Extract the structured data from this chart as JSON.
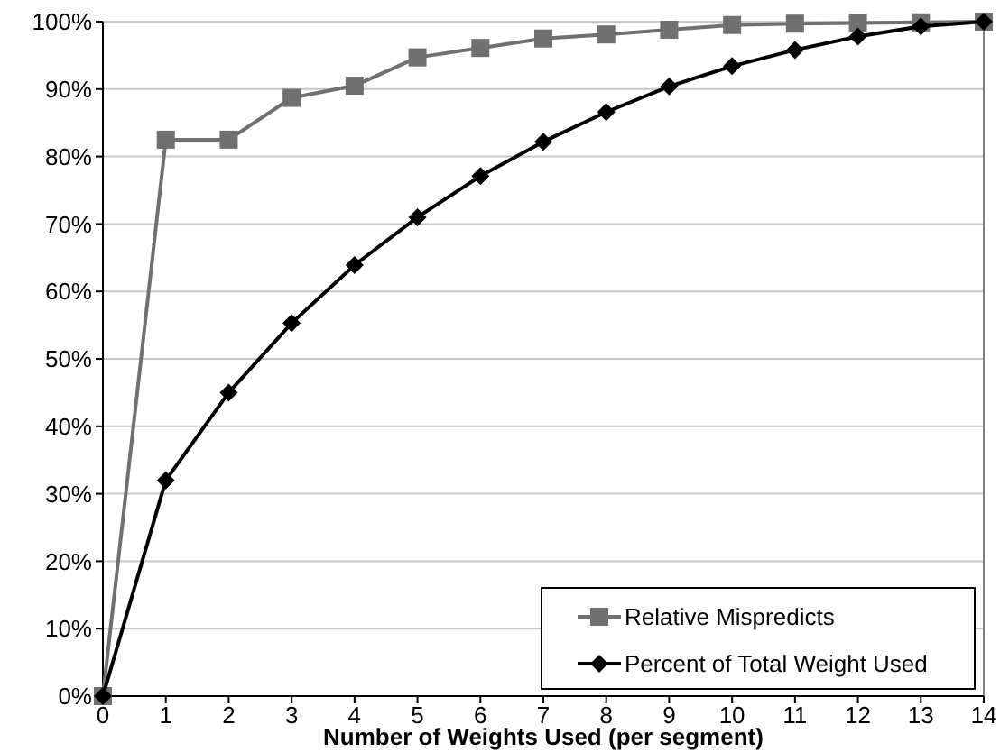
{
  "chart_data": {
    "type": "line",
    "xlabel": "Number of Weights Used (per segment)",
    "x": [
      0,
      1,
      2,
      3,
      4,
      5,
      6,
      7,
      8,
      9,
      10,
      11,
      12,
      13,
      14
    ],
    "xlim": [
      0,
      14
    ],
    "xticks": [
      0,
      1,
      2,
      3,
      4,
      5,
      6,
      7,
      8,
      9,
      10,
      11,
      12,
      13,
      14
    ],
    "ylim": [
      0,
      100
    ],
    "yticks": [
      {
        "value": 0,
        "label": "0%"
      },
      {
        "value": 10,
        "label": "10%"
      },
      {
        "value": 20,
        "label": "20%"
      },
      {
        "value": 30,
        "label": "30%"
      },
      {
        "value": 40,
        "label": "40%"
      },
      {
        "value": 50,
        "label": "50%"
      },
      {
        "value": 60,
        "label": "60%"
      },
      {
        "value": 70,
        "label": "70%"
      },
      {
        "value": 80,
        "label": "80%"
      },
      {
        "value": 90,
        "label": "90%"
      },
      {
        "value": 100,
        "label": "100%"
      }
    ],
    "grid": "y",
    "legend": "bottom right",
    "line_style": "solid",
    "series": [
      {
        "name": "Relative Mispredicts",
        "color": "#707070",
        "marker": "square",
        "values": [
          0,
          82.5,
          82.5,
          88.7,
          90.5,
          94.7,
          96.1,
          97.5,
          98.1,
          98.8,
          99.5,
          99.7,
          99.8,
          99.9,
          100
        ]
      },
      {
        "name": "Percent of Total Weight Used",
        "color": "#000000",
        "marker": "diamond",
        "values": [
          0,
          32,
          45,
          55.3,
          63.9,
          71,
          77.1,
          82.2,
          86.6,
          90.4,
          93.4,
          95.8,
          97.8,
          99.3,
          100
        ]
      }
    ]
  }
}
